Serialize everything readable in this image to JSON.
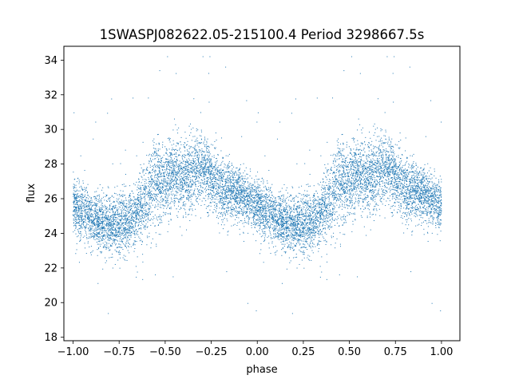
{
  "chart_data": {
    "type": "scatter",
    "title": "1SWASPJ082622.05-215100.4 Period 3298667.5s",
    "xlabel": "phase",
    "ylabel": "flux",
    "xlim": [
      -1.05,
      1.1
    ],
    "ylim": [
      17.8,
      34.8
    ],
    "xticks": [
      -1.0,
      -0.75,
      -0.5,
      -0.25,
      0.0,
      0.25,
      0.5,
      0.75,
      1.0
    ],
    "xtick_labels": [
      "−1.00",
      "−0.75",
      "−0.50",
      "−0.25",
      "0.00",
      "0.25",
      "0.50",
      "0.75",
      "1.00"
    ],
    "yticks": [
      18,
      20,
      22,
      24,
      26,
      28,
      30,
      32,
      34
    ],
    "ytick_labels": [
      "18",
      "20",
      "22",
      "24",
      "26",
      "28",
      "30",
      "32",
      "34"
    ],
    "grid": false,
    "marker_color": "#1f77b4",
    "series": [
      {
        "note_free_profile": true,
        "phase_profile": {
          "x": [
            0.0,
            0.05,
            0.1,
            0.15,
            0.2,
            0.25,
            0.3,
            0.35,
            0.4,
            0.45,
            0.5,
            0.55,
            0.6,
            0.65,
            0.7,
            0.75,
            0.8,
            0.85,
            0.9,
            0.95,
            1.0
          ],
          "flux": [
            25.6,
            25.3,
            24.9,
            24.6,
            24.5,
            24.6,
            24.7,
            25.2,
            26.0,
            27.0,
            27.0,
            27.6,
            27.3,
            27.5,
            27.9,
            27.2,
            26.7,
            26.4,
            26.3,
            26.0,
            25.6
          ],
          "scatter": [
            0.9,
            1.0,
            1.0,
            1.0,
            1.0,
            1.1,
            1.1,
            1.2,
            1.4,
            1.5,
            1.3,
            1.3,
            1.3,
            1.3,
            1.3,
            1.2,
            1.1,
            1.0,
            0.9,
            0.9,
            0.9
          ]
        },
        "n_points": 5200
      }
    ]
  }
}
